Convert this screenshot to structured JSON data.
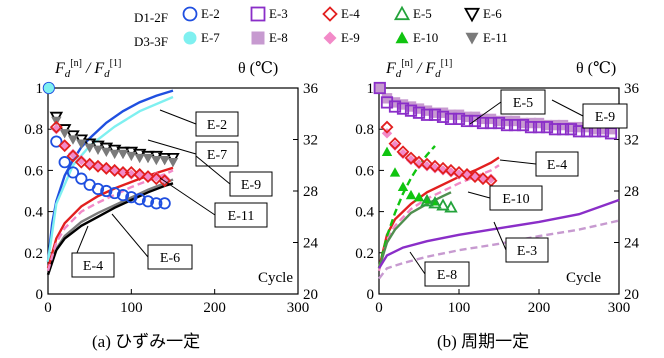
{
  "legend": {
    "row1": {
      "group": "D1-2F",
      "items": [
        {
          "key": "E-2",
          "color": "#1f4fe0",
          "marker": "circle-open"
        },
        {
          "key": "E-3",
          "color": "#8a2ec8",
          "marker": "square-open"
        },
        {
          "key": "E-4",
          "color": "#e21f1f",
          "marker": "diamond-open"
        },
        {
          "key": "E-5",
          "color": "#23a33b",
          "marker": "triangle-up-open"
        },
        {
          "key": "E-6",
          "color": "#000000",
          "marker": "triangle-down-open"
        }
      ]
    },
    "row2": {
      "group": "D3-3F",
      "items": [
        {
          "key": "E-7",
          "color": "#7ff0f0",
          "marker": "circle-filled"
        },
        {
          "key": "E-8",
          "color": "#c79ad0",
          "marker": "square-filled"
        },
        {
          "key": "E-9",
          "color": "#f28ac8",
          "marker": "diamond-filled"
        },
        {
          "key": "E-10",
          "color": "#10c410",
          "marker": "triangle-up-filled"
        },
        {
          "key": "E-11",
          "color": "#7a7a7a",
          "marker": "triangle-down-filled"
        }
      ]
    }
  },
  "axis_text": {
    "left_f": "F",
    "left_sub": "d",
    "left_n": "[n]",
    "left_slash": " / F",
    "left_sub2": "d",
    "left_1": "[1]",
    "theta": "θ (℃)",
    "xlabel": "Cycle"
  },
  "chart_data": [
    {
      "type": "scatter",
      "caption": "(a) ひずみ一定",
      "xlim": [
        0,
        300
      ],
      "x_ticks": [
        0,
        100,
        200,
        300
      ],
      "y_left_lim": [
        0,
        1
      ],
      "y_left_ticks": [
        "0",
        "0.2",
        "0.4",
        "0.6",
        "0.8",
        "1"
      ],
      "y_right_lim": [
        20,
        36
      ],
      "y_right_ticks": [
        "20",
        "24",
        "28",
        "32",
        "36"
      ],
      "series": [
        {
          "name": "E-2",
          "axis": "left",
          "marker": "circle-open",
          "color": "#1f4fe0",
          "x": [
            1,
            10,
            20,
            30,
            40,
            50,
            60,
            70,
            80,
            90,
            100,
            110,
            120,
            130,
            140
          ],
          "y": [
            1.0,
            0.74,
            0.64,
            0.59,
            0.56,
            0.53,
            0.51,
            0.5,
            0.49,
            0.48,
            0.47,
            0.46,
            0.45,
            0.44,
            0.44
          ]
        },
        {
          "name": "E-6",
          "axis": "left",
          "marker": "triangle-down-open",
          "color": "#000000",
          "x": [
            10,
            20,
            30,
            40,
            50,
            60,
            70,
            80,
            90,
            100,
            110,
            120,
            130,
            140,
            150
          ],
          "y": [
            0.86,
            0.8,
            0.77,
            0.75,
            0.73,
            0.72,
            0.71,
            0.7,
            0.69,
            0.69,
            0.68,
            0.67,
            0.67,
            0.66,
            0.66
          ]
        },
        {
          "name": "E-11",
          "axis": "left",
          "marker": "triangle-down-filled",
          "color": "#7a7a7a",
          "x": [
            10,
            20,
            30,
            40,
            50,
            60,
            70,
            80,
            90,
            100,
            110,
            120,
            130,
            140,
            150
          ],
          "y": [
            0.84,
            0.78,
            0.75,
            0.73,
            0.71,
            0.7,
            0.69,
            0.68,
            0.68,
            0.67,
            0.66,
            0.66,
            0.65,
            0.65,
            0.64
          ]
        },
        {
          "name": "E-9",
          "axis": "left",
          "marker": "diamond-filled",
          "color": "#f28ac8",
          "x": [
            10,
            20,
            30,
            40,
            50,
            60,
            70,
            80,
            90,
            100,
            110,
            120,
            130,
            140
          ],
          "y": [
            0.8,
            0.72,
            0.68,
            0.65,
            0.63,
            0.62,
            0.61,
            0.6,
            0.59,
            0.58,
            0.58,
            0.57,
            0.57,
            0.56
          ]
        },
        {
          "name": "E-4",
          "axis": "left",
          "marker": "diamond-open",
          "color": "#e21f1f",
          "x": [
            10,
            20,
            30,
            40,
            50,
            60,
            70,
            80,
            90,
            100,
            110,
            120,
            130,
            140
          ],
          "y": [
            0.81,
            0.72,
            0.67,
            0.64,
            0.63,
            0.62,
            0.61,
            0.6,
            0.59,
            0.59,
            0.58,
            0.57,
            0.56,
            0.55
          ]
        },
        {
          "name": "E-7",
          "axis": "left",
          "marker": "circle-filled",
          "color": "#7ff0f0",
          "x": [
            1
          ],
          "y": [
            1.0
          ]
        },
        {
          "name": "E-2 θ",
          "axis": "right",
          "line": "solid",
          "color": "#1f4fe0",
          "x": [
            0,
            5,
            10,
            20,
            30,
            40,
            50,
            70,
            90,
            110,
            130,
            150
          ],
          "y": [
            22.5,
            25.5,
            27.2,
            29.2,
            30.4,
            31.4,
            32.1,
            33.3,
            34.2,
            34.9,
            35.4,
            35.8
          ]
        },
        {
          "name": "E-7 θ",
          "axis": "right",
          "line": "solid",
          "color": "#7ff0f0",
          "x": [
            0,
            10,
            30,
            50,
            80,
            110,
            150
          ],
          "y": [
            22.5,
            27,
            30,
            31.5,
            33,
            34.2,
            35.3
          ]
        },
        {
          "name": "E-11 θ",
          "axis": "right",
          "line": "solid",
          "color": "#7a7a7a",
          "x": [
            0,
            10,
            20,
            40,
            60,
            80,
            100,
            120,
            140,
            150
          ],
          "y": [
            21.5,
            23.5,
            24.5,
            25.6,
            26.3,
            26.9,
            27.5,
            28.1,
            28.6,
            28.9
          ]
        },
        {
          "name": "E-6 θ",
          "axis": "right",
          "line": "solid",
          "color": "#000000",
          "x": [
            0,
            10,
            20,
            40,
            60,
            80,
            100,
            120,
            140,
            150
          ],
          "y": [
            21.5,
            23.4,
            24.3,
            25.3,
            26,
            26.7,
            27.3,
            27.9,
            28.4,
            28.6
          ]
        },
        {
          "name": "E-4 θ",
          "axis": "right",
          "line": "solid",
          "color": "#e21f1f",
          "x": [
            0,
            10,
            20,
            40,
            60,
            80,
            100,
            120,
            140,
            150
          ],
          "y": [
            22,
            24.3,
            25.5,
            26.8,
            27.6,
            28.2,
            28.7,
            29.2,
            29.6,
            29.8
          ]
        },
        {
          "name": "E-9 θ",
          "axis": "right",
          "line": "dashed",
          "color": "#f28ac8",
          "x": [
            0,
            10,
            20,
            40,
            60,
            80,
            100,
            120,
            140,
            150
          ],
          "y": [
            21.8,
            24,
            25.1,
            26.4,
            27.1,
            27.7,
            28.3,
            28.8,
            29.3,
            29.6
          ]
        }
      ],
      "annotations": [
        "E-2",
        "E-7",
        "E-9",
        "E-11",
        "E-6",
        "E-4"
      ]
    },
    {
      "type": "scatter",
      "caption": "(b) 周期一定",
      "xlim": [
        0,
        300
      ],
      "x_ticks": [
        0,
        100,
        200,
        300
      ],
      "y_left_lim": [
        0,
        1
      ],
      "y_left_ticks": [
        "0",
        "0.2",
        "0.4",
        "0.6",
        "0.8",
        "1"
      ],
      "y_right_lim": [
        20,
        36
      ],
      "y_right_ticks": [
        "20",
        "24",
        "28",
        "32",
        "36"
      ],
      "series": [
        {
          "name": "E-8",
          "axis": "left",
          "marker": "square-filled",
          "color": "#c79ad0",
          "x": [
            1,
            10,
            20,
            30,
            40,
            50,
            60,
            70,
            80,
            90,
            100,
            110,
            120,
            130,
            140,
            150,
            160,
            170,
            180,
            190,
            200,
            210,
            220,
            230,
            240,
            250,
            260,
            270,
            280,
            290
          ],
          "y": [
            1.0,
            0.95,
            0.93,
            0.92,
            0.91,
            0.9,
            0.89,
            0.88,
            0.88,
            0.87,
            0.87,
            0.86,
            0.86,
            0.85,
            0.85,
            0.84,
            0.84,
            0.84,
            0.83,
            0.83,
            0.83,
            0.82,
            0.82,
            0.82,
            0.81,
            0.81,
            0.81,
            0.8,
            0.8,
            0.8
          ]
        },
        {
          "name": "E-3",
          "axis": "left",
          "marker": "square-open",
          "color": "#8a2ec8",
          "x": [
            1,
            10,
            20,
            30,
            40,
            50,
            60,
            70,
            80,
            90,
            100,
            110,
            120,
            130,
            140,
            150,
            160,
            170,
            180,
            190,
            200,
            210,
            220,
            230,
            240,
            250,
            260,
            270,
            280,
            290
          ],
          "y": [
            1.0,
            0.93,
            0.91,
            0.9,
            0.89,
            0.88,
            0.87,
            0.87,
            0.86,
            0.85,
            0.85,
            0.84,
            0.84,
            0.83,
            0.83,
            0.83,
            0.82,
            0.82,
            0.82,
            0.81,
            0.81,
            0.81,
            0.8,
            0.8,
            0.8,
            0.79,
            0.79,
            0.79,
            0.79,
            0.78
          ]
        },
        {
          "name": "E-9",
          "axis": "left",
          "marker": "diamond-filled",
          "color": "#f28ac8",
          "x": [
            10,
            20,
            30,
            40,
            50,
            60,
            70,
            80,
            90,
            100,
            110,
            120,
            130,
            140
          ],
          "y": [
            0.78,
            0.72,
            0.68,
            0.65,
            0.63,
            0.62,
            0.61,
            0.6,
            0.59,
            0.58,
            0.58,
            0.57,
            0.56,
            0.56
          ]
        },
        {
          "name": "E-4",
          "axis": "left",
          "marker": "diamond-open",
          "color": "#e21f1f",
          "x": [
            10,
            20,
            30,
            40,
            50,
            60,
            70,
            80,
            90,
            100,
            110,
            120,
            130,
            140
          ],
          "y": [
            0.81,
            0.73,
            0.69,
            0.66,
            0.64,
            0.63,
            0.62,
            0.61,
            0.6,
            0.59,
            0.58,
            0.57,
            0.56,
            0.55
          ]
        },
        {
          "name": "E-10",
          "axis": "left",
          "marker": "triangle-up-filled",
          "color": "#10c410",
          "x": [
            10,
            20,
            30,
            40,
            50,
            60,
            70
          ],
          "y": [
            0.69,
            0.59,
            0.52,
            0.48,
            0.47,
            0.46,
            0.45
          ]
        },
        {
          "name": "E-5",
          "axis": "left",
          "marker": "triangle-up-open",
          "color": "#23a33b",
          "x": [
            60,
            70,
            80,
            90
          ],
          "y": [
            0.45,
            0.44,
            0.43,
            0.42
          ]
        },
        {
          "name": "E-4 θ",
          "axis": "right",
          "line": "solid",
          "color": "#e21f1f",
          "x": [
            0,
            10,
            20,
            40,
            60,
            80,
            100,
            120,
            140,
            150
          ],
          "y": [
            22,
            24.6,
            25.8,
            27,
            27.9,
            28.5,
            29.1,
            29.6,
            30.2,
            30.6
          ]
        },
        {
          "name": "E-9 θ",
          "axis": "right",
          "line": "dashed",
          "color": "#f28ac8",
          "x": [
            0,
            10,
            20,
            40,
            60,
            80,
            100,
            120,
            140,
            150
          ],
          "y": [
            21.8,
            24.2,
            25.3,
            26.6,
            27.4,
            28,
            28.6,
            29.1,
            29.6,
            30
          ]
        },
        {
          "name": "E-10 θ",
          "axis": "right",
          "line": "dashed",
          "color": "#10c410",
          "x": [
            0,
            10,
            20,
            30,
            40,
            50,
            60,
            70
          ],
          "y": [
            22,
            24.5,
            26.3,
            27.8,
            29,
            30,
            30.8,
            31.5
          ]
        },
        {
          "name": "E-5 θ",
          "axis": "right",
          "line": "solid",
          "color": "#4f8f4f",
          "x": [
            0,
            10,
            20,
            40,
            60,
            80,
            90
          ],
          "y": [
            22,
            24,
            25,
            26.3,
            27,
            27.6,
            27.9
          ]
        },
        {
          "name": "E-3 θ",
          "axis": "right",
          "line": "solid",
          "color": "#8a2ec8",
          "x": [
            0,
            10,
            30,
            60,
            100,
            150,
            200,
            250,
            300
          ],
          "y": [
            22,
            23,
            23.6,
            24.1,
            24.6,
            25.1,
            25.6,
            26.2,
            27.3
          ]
        },
        {
          "name": "E-8 θ",
          "axis": "right",
          "line": "dashed",
          "color": "#c79ad0",
          "x": [
            0,
            10,
            30,
            60,
            100,
            150,
            200,
            250,
            300
          ],
          "y": [
            21.2,
            22,
            22.4,
            22.9,
            23.4,
            23.9,
            24.5,
            25,
            25.7
          ]
        }
      ],
      "annotations": [
        "E-5",
        "E-9",
        "E-4",
        "E-10",
        "E-3",
        "E-8"
      ]
    }
  ]
}
